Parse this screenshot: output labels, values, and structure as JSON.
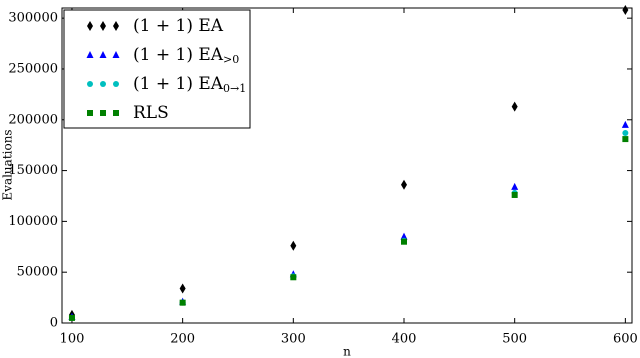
{
  "chart_data": {
    "type": "scatter",
    "x_label": "n",
    "y_label": "Evaluations",
    "x": [
      100,
      200,
      300,
      400,
      500,
      600
    ],
    "series": [
      {
        "name": "(1 + 1) EA",
        "marker": "diamond",
        "color": "#000000",
        "values": [
          8000,
          34000,
          76000,
          136000,
          213000,
          308000
        ]
      },
      {
        "name": "(1 + 1) EA",
        "subscript": ">0",
        "marker": "triangle",
        "color": "#0000ff",
        "values": [
          6000,
          21000,
          48000,
          85000,
          134000,
          195000
        ]
      },
      {
        "name": "(1 + 1) EA",
        "subscript": "0→1",
        "marker": "circle",
        "color": "#00bfbf",
        "values": [
          5000,
          20000,
          46000,
          81000,
          128000,
          187000
        ]
      },
      {
        "name": "RLS",
        "marker": "square",
        "color": "#008000",
        "values": [
          5000,
          20000,
          45000,
          80000,
          126000,
          181000
        ]
      }
    ],
    "xlim": [
      91,
      606
    ],
    "ylim": [
      0,
      310000
    ],
    "xticks": [
      100,
      200,
      300,
      400,
      500,
      600
    ],
    "yticks": [
      0,
      50000,
      100000,
      150000,
      200000,
      250000,
      300000
    ],
    "legend": "upper left"
  }
}
